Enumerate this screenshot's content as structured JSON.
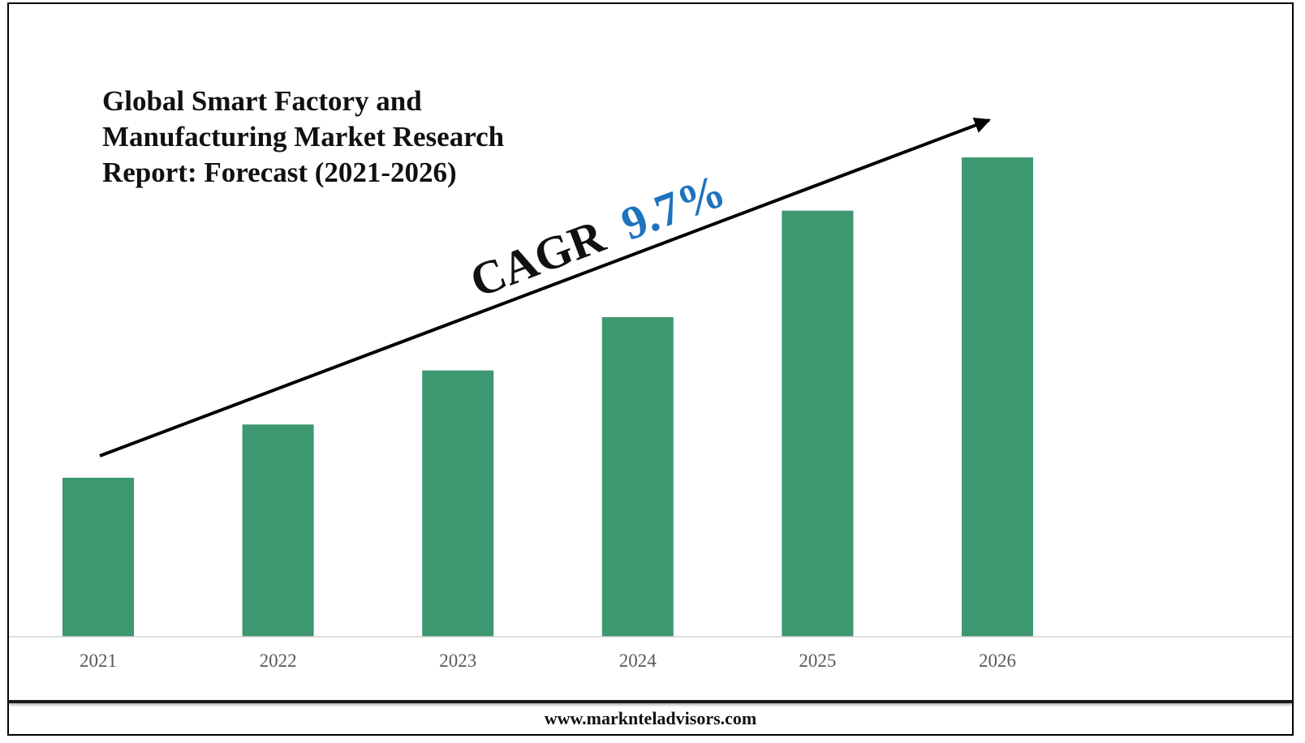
{
  "chart_data": {
    "type": "bar",
    "title": "Global Smart Factory and Manufacturing Market Research Report: Forecast (2021-2026)",
    "title_lines": [
      "Global Smart Factory and",
      "Manufacturing Market Research",
      "Report: Forecast (2021-2026)"
    ],
    "categories": [
      "2021",
      "2022",
      "2023",
      "2024",
      "2025",
      "2026"
    ],
    "values": [
      100,
      133.5,
      167.5,
      201,
      268,
      301.5
    ],
    "ylim": [
      0,
      310
    ],
    "grid": false,
    "bar_color": "#3d9771",
    "annotation": {
      "prefix": "CAGR",
      "value": "9.7%",
      "prefix_color": "#111111",
      "value_color": "#1e73be"
    }
  },
  "footer": {
    "url": "www.marknteladvisors.com"
  }
}
